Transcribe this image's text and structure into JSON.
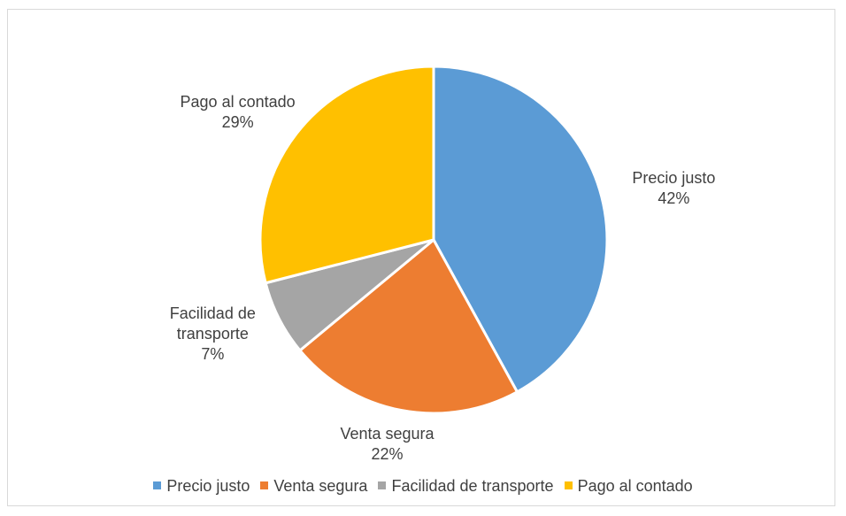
{
  "chart_data": {
    "type": "pie",
    "categories": [
      "Precio justo",
      "Venta segura",
      "Facilidad de transporte",
      "Pago al contado"
    ],
    "values": [
      42,
      22,
      7,
      29
    ],
    "value_labels": [
      "42%",
      "22%",
      "7%",
      "29%"
    ],
    "colors": [
      "#5b9bd5",
      "#ed7d31",
      "#a5a5a5",
      "#ffc000"
    ],
    "legend": "bottom"
  }
}
